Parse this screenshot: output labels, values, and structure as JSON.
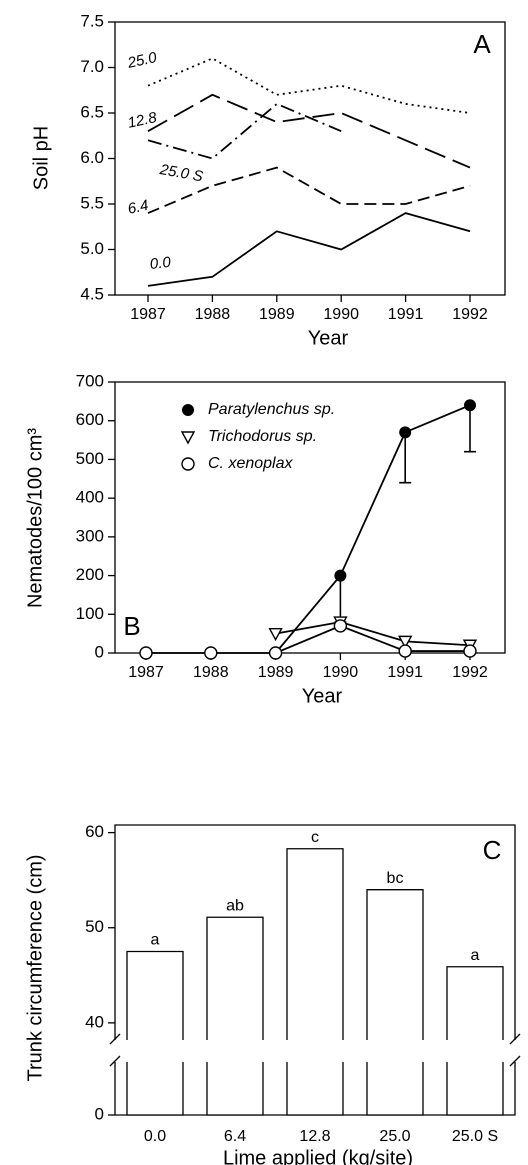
{
  "chart_data": [
    {
      "type": "line",
      "x_label": "Year",
      "y_label": "Soil pH",
      "annotation": "A",
      "categories": [
        "1987",
        "1988",
        "1989",
        "1990",
        "1991",
        "1992"
      ],
      "ylim": [
        4.5,
        7.5
      ],
      "yticks": [
        4.5,
        {
          "value": 5,
          "label": "5.0"
        },
        5.5,
        {
          "value": 6,
          "label": "6.0"
        },
        6.5,
        {
          "value": 7,
          "label": "7.0"
        },
        7.5
      ],
      "series": [
        {
          "name": "25.0",
          "color": "#000000",
          "style": "dotted",
          "values": [
            6.8,
            7.1,
            6.7,
            6.8,
            6.6,
            6.5
          ]
        },
        {
          "name": "12.8",
          "color": "#000000",
          "style": "long-dash",
          "values": [
            6.3,
            6.7,
            6.4,
            6.5,
            6.2,
            5.9
          ]
        },
        {
          "name": "25.0 S",
          "color": "#000000",
          "style": "dash-dot",
          "values": [
            6.2,
            6.0,
            6.6,
            6.3,
            null,
            null
          ]
        },
        {
          "name": "6.4",
          "color": "#000000",
          "style": "dash",
          "values": [
            5.4,
            5.7,
            5.9,
            5.5,
            5.5,
            5.7
          ]
        },
        {
          "name": "0.0",
          "color": "#000000",
          "style": "solid",
          "values": [
            4.6,
            4.7,
            5.2,
            5.0,
            5.4,
            5.2
          ]
        }
      ]
    },
    {
      "type": "line",
      "x_label": "Year",
      "y_label": "Nematodes/100 cm³",
      "annotation": "B",
      "categories": [
        "1987",
        "1988",
        "1989",
        "1990",
        "1991",
        "1992"
      ],
      "ylim": [
        0,
        700
      ],
      "yticks": [
        0,
        100,
        200,
        300,
        400,
        500,
        600,
        700
      ],
      "series": [
        {
          "name": "Paratylenchus sp.",
          "color": "#000000",
          "marker": "filled-circle",
          "values": [
            null,
            null,
            0,
            200,
            570,
            640
          ],
          "errors": [
            null,
            null,
            null,
            120,
            130,
            120
          ]
        },
        {
          "name": "Trichodorus sp.",
          "color": "#000000",
          "marker": "triangle-down",
          "values": [
            null,
            null,
            50,
            80,
            30,
            20
          ]
        },
        {
          "name": "C. xenoplax",
          "color": "#000000",
          "marker": "open-circle",
          "values": [
            0,
            0,
            0,
            70,
            5,
            5
          ]
        }
      ]
    },
    {
      "type": "bar",
      "x_label": "Lime applied (kg/site)",
      "y_label": "Trunk circumference (cm)",
      "annotation": "C",
      "categories": [
        "0.0",
        "6.4",
        "12.8",
        "25.0",
        "25.0 S"
      ],
      "values": [
        47.5,
        51.1,
        58.3,
        54.0,
        45.9
      ],
      "letters": [
        "a",
        "ab",
        "c",
        "bc",
        "a"
      ],
      "color": "#ffffff",
      "ylim": [
        38.2,
        60.8
      ],
      "ylim_lower": [
        0,
        5.5
      ],
      "axis_break": true,
      "yticks": [
        0,
        40,
        50,
        60
      ]
    }
  ]
}
